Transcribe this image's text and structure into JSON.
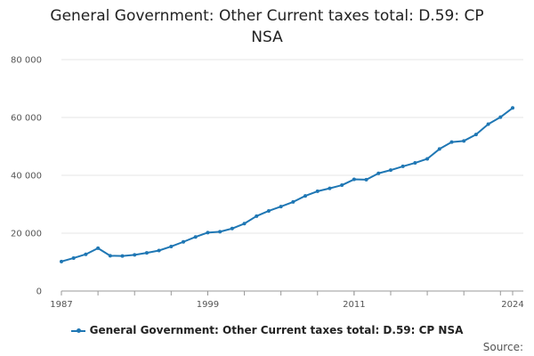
{
  "chart_data": {
    "type": "line",
    "title_lines": [
      "General Government: Other Current taxes total: D.59: CP",
      "NSA"
    ],
    "xlabel": "",
    "ylabel": "",
    "x": [
      1987,
      1988,
      1989,
      1990,
      1991,
      1992,
      1993,
      1994,
      1995,
      1996,
      1997,
      1998,
      1999,
      2000,
      2001,
      2002,
      2003,
      2004,
      2005,
      2006,
      2007,
      2008,
      2009,
      2010,
      2011,
      2012,
      2013,
      2014,
      2015,
      2016,
      2017,
      2018,
      2019,
      2020,
      2021,
      2022,
      2023,
      2024
    ],
    "series": [
      {
        "name": "General Government: Other Current taxes total: D.59: CP NSA",
        "color": "#1f77b4",
        "values": [
          10200,
          11400,
          12700,
          14800,
          12200,
          12100,
          12500,
          13200,
          14000,
          15400,
          17000,
          18700,
          20200,
          20500,
          21600,
          23300,
          25900,
          27700,
          29200,
          30800,
          32900,
          34500,
          35500,
          36600,
          38600,
          38500,
          40700,
          41800,
          43100,
          44300,
          45700,
          49100,
          51500,
          51900,
          54100,
          57700,
          60100,
          63300
        ]
      }
    ],
    "xticks": [
      1987,
      1999,
      2011,
      2024
    ],
    "xtick_labels": [
      "1987",
      "1999",
      "2011",
      "2024"
    ],
    "yticks": [
      0,
      20000,
      40000,
      60000,
      80000
    ],
    "ytick_labels": [
      "0",
      "20 000",
      "40 000",
      "60 000",
      "80 000"
    ],
    "xlim": [
      1987,
      2024
    ],
    "ylim": [
      0,
      80000
    ],
    "grid": true,
    "legend_position": "bottom-center"
  },
  "legend_label": "General Government: Other Current taxes total: D.59: CP NSA",
  "source_label": "Source:"
}
